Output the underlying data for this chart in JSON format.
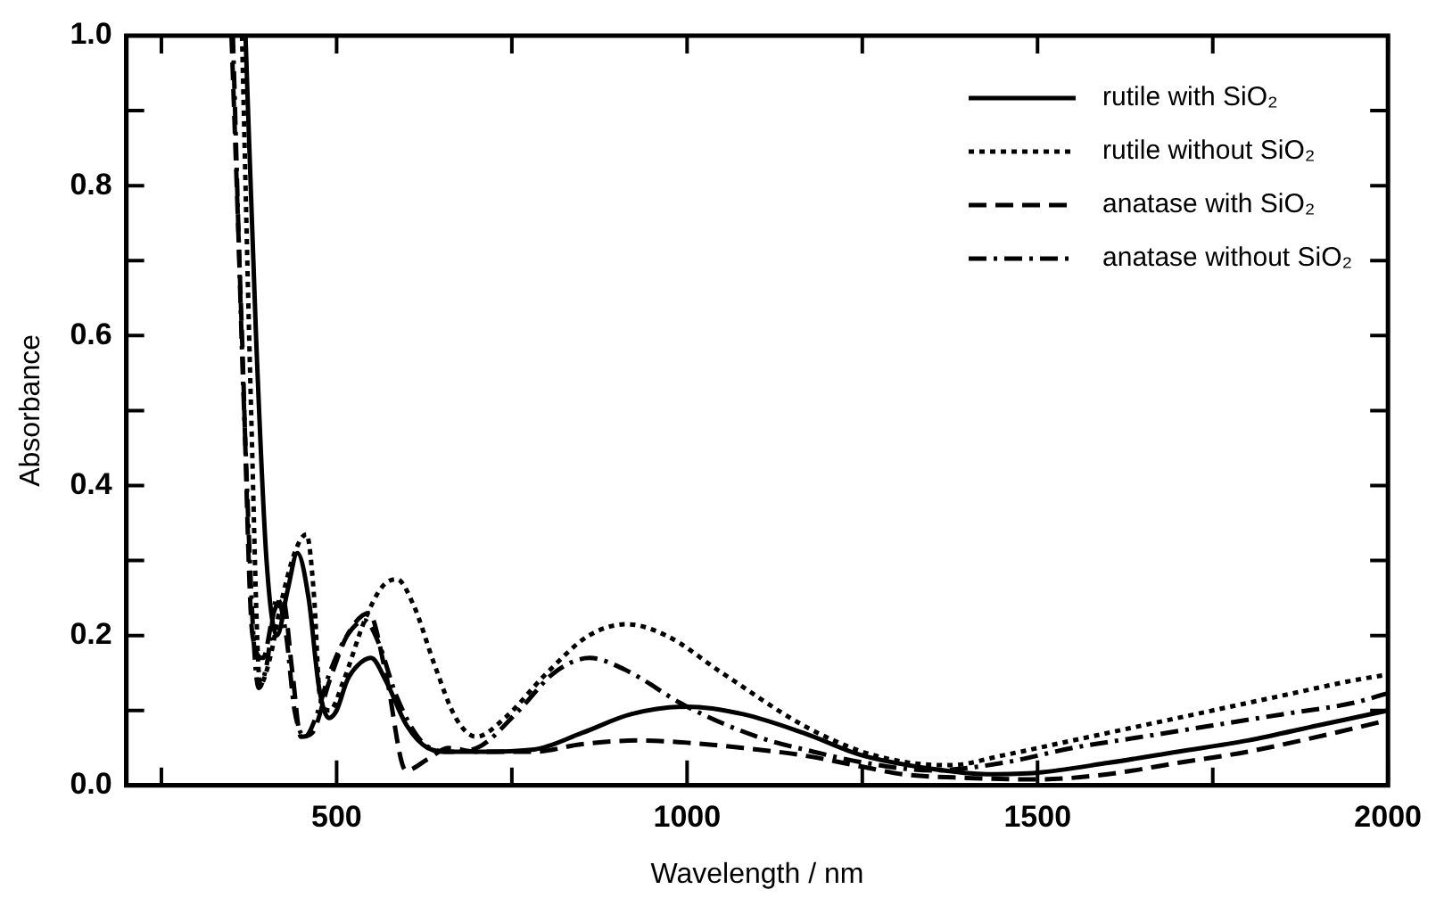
{
  "chart_data": {
    "type": "line",
    "xlabel": "Wavelength / nm",
    "ylabel": "Absorbance",
    "xlim": [
      200,
      2000
    ],
    "xticks": [
      {
        "value": 250,
        "label": null
      },
      500,
      {
        "value": 750,
        "label": null
      },
      1000,
      {
        "value": 1250,
        "label": null
      },
      1500,
      {
        "value": 1750,
        "label": null
      },
      2000
    ],
    "ylim": [
      0,
      1
    ],
    "yticks": [
      "0.0",
      {
        "value": 0.1,
        "label": null
      },
      0.2,
      {
        "value": 0.3,
        "label": null
      },
      0.4,
      {
        "value": 0.5,
        "label": null
      },
      0.6,
      {
        "value": 0.7,
        "label": null
      },
      0.8,
      {
        "value": 0.9,
        "label": null
      },
      "1.0"
    ],
    "grid": false,
    "legend": "top right",
    "marker": "none",
    "series": [
      {
        "name": "rutile with SiO₂",
        "color": "#000000",
        "line_style": "solid",
        "x": [
          370,
          385,
          400,
          415,
          430,
          444,
          460,
          475,
          489,
          500,
          515,
          530,
          549,
          570,
          600,
          630,
          659,
          700,
          782,
          850,
          920,
          1000,
          1080,
          1166,
          1250,
          1350,
          1428,
          1500,
          1600,
          1700,
          1800,
          1900,
          2000
        ],
        "values": [
          1.0,
          0.6,
          0.3,
          0.2,
          0.26,
          0.31,
          0.25,
          0.13,
          0.09,
          0.1,
          0.14,
          0.16,
          0.17,
          0.14,
          0.08,
          0.05,
          0.045,
          0.045,
          0.048,
          0.07,
          0.095,
          0.105,
          0.095,
          0.07,
          0.04,
          0.022,
          0.015,
          0.017,
          0.03,
          0.045,
          0.06,
          0.08,
          0.1
        ]
      },
      {
        "name": "rutile without SiO₂",
        "color": "#000000",
        "line_style": "dotted",
        "x": [
          365,
          378,
          391,
          405,
          420,
          440,
          457,
          468,
          476,
          490,
          510,
          540,
          565,
          586,
          610,
          640,
          670,
          699,
          740,
          800,
          860,
          914,
          970,
          1050,
          1166,
          1250,
          1320,
          1375,
          1450,
          1550,
          1650,
          1750,
          1850,
          1950,
          2000
        ],
        "values": [
          1.0,
          0.5,
          0.135,
          0.17,
          0.24,
          0.31,
          0.335,
          0.25,
          0.12,
          0.1,
          0.14,
          0.22,
          0.265,
          0.275,
          0.24,
          0.16,
          0.09,
          0.065,
          0.09,
          0.15,
          0.2,
          0.215,
          0.2,
          0.15,
          0.08,
          0.045,
          0.03,
          0.027,
          0.04,
          0.06,
          0.08,
          0.1,
          0.12,
          0.14,
          0.148
        ]
      },
      {
        "name": "anatase with SiO₂",
        "color": "#000000",
        "line_style": "dashed",
        "x": [
          350,
          365,
          380,
          395,
          410,
          423,
          437,
          449,
          465,
          490,
          515,
          546,
          570,
          599,
          630,
          659,
          700,
          782,
          850,
          930,
          1000,
          1080,
          1166,
          1250,
          1307,
          1400,
          1500,
          1600,
          1700,
          1800,
          1900,
          2000
        ],
        "values": [
          1.0,
          0.6,
          0.2,
          0.17,
          0.23,
          0.25,
          0.15,
          0.065,
          0.07,
          0.14,
          0.2,
          0.23,
          0.15,
          0.02,
          0.035,
          0.05,
          0.045,
          0.045,
          0.055,
          0.06,
          0.057,
          0.05,
          0.04,
          0.025,
          0.015,
          0.01,
          0.008,
          0.015,
          0.03,
          0.045,
          0.065,
          0.087
        ]
      },
      {
        "name": "anatase without SiO₂",
        "color": "#000000",
        "line_style": "dashdot",
        "x": [
          352,
          368,
          389,
          400,
          415,
          428,
          440,
          455,
          470,
          490,
          515,
          540,
          560,
          585,
          620,
          660,
          700,
          760,
          810,
          861,
          910,
          1000,
          1100,
          1180,
          1255,
          1350,
          1450,
          1550,
          1650,
          1750,
          1850,
          1950,
          2000
        ],
        "values": [
          1.0,
          0.5,
          0.13,
          0.16,
          0.25,
          0.2,
          0.1,
          0.065,
          0.09,
          0.15,
          0.2,
          0.22,
          0.19,
          0.12,
          0.06,
          0.045,
          0.05,
          0.1,
          0.15,
          0.17,
          0.155,
          0.105,
          0.065,
          0.045,
          0.03,
          0.02,
          0.03,
          0.05,
          0.065,
          0.08,
          0.095,
          0.11,
          0.123
        ]
      }
    ]
  }
}
